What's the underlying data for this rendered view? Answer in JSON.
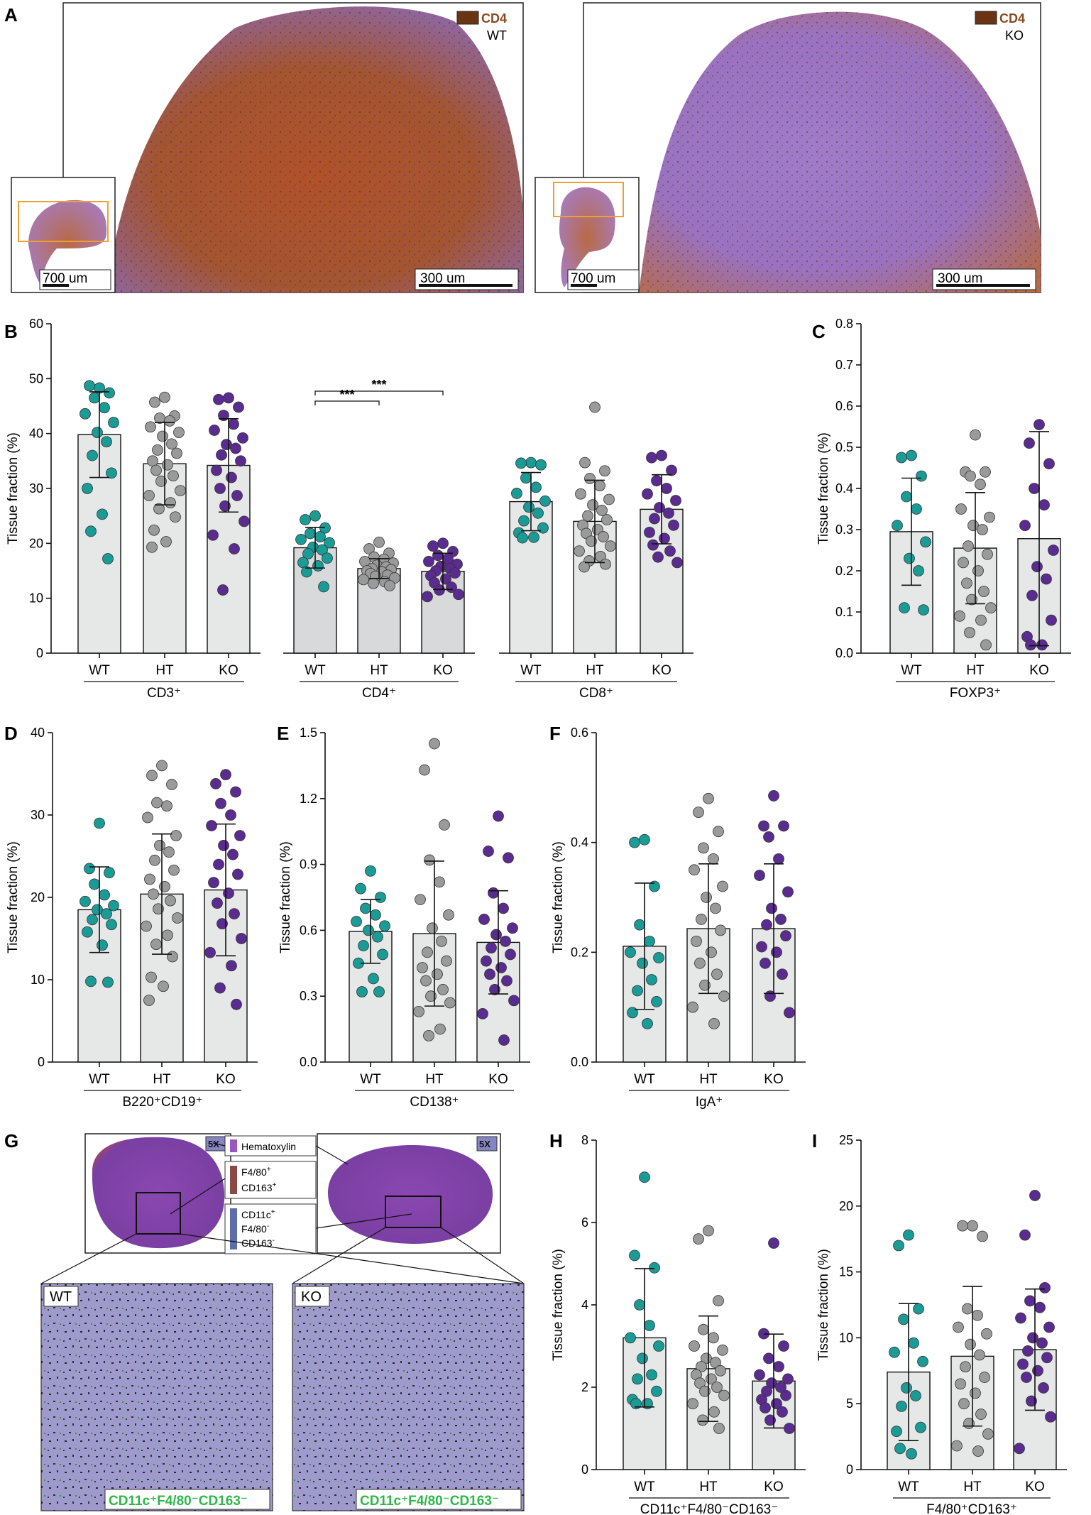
{
  "colors": {
    "wt": "#1a9b96",
    "ht": "#9a9a9a",
    "ko": "#5b2c8f",
    "bar_fill": "#e6e8e8",
    "bar_fill_dark": "#d7d9db",
    "stain_brown": "#6b3514",
    "hematoxylin": "#9a57c2",
    "f480": "#8a4a45",
    "cd11c": "#5b6ea8",
    "green_label": "#2db84a"
  },
  "panel_letters": [
    "A",
    "B",
    "C",
    "D",
    "E",
    "F",
    "G",
    "H",
    "I"
  ],
  "panel_a": {
    "left": {
      "stain_label": "CD4",
      "genotype": "WT",
      "inset_scale": "700 um",
      "main_scale": "300 um"
    },
    "right": {
      "stain_label": "CD4",
      "genotype": "KO",
      "inset_scale": "700 um",
      "main_scale": "300 um"
    }
  },
  "panel_g": {
    "magnification": "5X",
    "legend": [
      {
        "label_lines": [
          "Hematoxylin"
        ]
      },
      {
        "label_lines": [
          "F4/80",
          "CD163"
        ],
        "sups": [
          "+",
          "+"
        ]
      },
      {
        "label_lines": [
          "CD11c",
          "F4/80",
          "CD163"
        ],
        "sups": [
          "+",
          "-",
          "-"
        ]
      }
    ],
    "zoom_left_label": "WT",
    "zoom_right_label": "KO",
    "cell_label": "CD11c⁺F4/80⁻CD163⁻"
  },
  "chart_data": [
    {
      "id": "B",
      "type": "bar",
      "ylabel": "Tissue fraction (%)",
      "ylim": [
        0,
        60
      ],
      "yticks": [
        0,
        10,
        20,
        30,
        40,
        50,
        60
      ],
      "groups": [
        {
          "label": "CD3⁺",
          "categories": [
            "WT",
            "HT",
            "KO"
          ],
          "means": [
            39.8,
            34.5,
            34.2
          ],
          "sd": [
            7.8,
            7.5,
            8.5
          ],
          "points": [
            [
              48.3,
              48.7,
              47.4,
              46.5,
              44.7,
              43.6,
              42.0,
              40.2,
              38.5,
              36.0,
              32.8,
              30.0,
              25.3,
              22.2,
              17.2
            ],
            [
              46.6,
              45.7,
              43.2,
              42.8,
              42.3,
              41.2,
              40.2,
              39.5,
              38.1,
              37.0,
              36.4,
              35.0,
              34.3,
              33.3,
              32.3,
              31.3,
              29.6,
              28.7,
              27.4,
              26.3,
              24.8,
              22.4,
              20.3,
              19.3
            ],
            [
              46.5,
              46.2,
              44.8,
              43.3,
              41.7,
              40.6,
              39.2,
              38.0,
              37.3,
              36.1,
              35.0,
              33.3,
              32.0,
              30.0,
              28.7,
              26.8,
              24.0,
              21.5,
              19.0,
              11.5
            ]
          ]
        },
        {
          "label": "CD4⁺",
          "categories": [
            "WT",
            "HT",
            "KO"
          ],
          "means": [
            19.2,
            15.4,
            14.9
          ],
          "sd": [
            3.7,
            1.8,
            3.3
          ],
          "points": [
            [
              25.0,
              24.3,
              22.8,
              21.8,
              21.2,
              20.7,
              20.1,
              19.3,
              18.8,
              18.1,
              17.3,
              16.5,
              15.9,
              14.8,
              12.1
            ],
            [
              20.2,
              19.0,
              18.2,
              17.5,
              17.1,
              16.7,
              16.4,
              16.0,
              15.7,
              15.4,
              15.2,
              15.0,
              14.8,
              14.5,
              14.2,
              14.0,
              13.7,
              13.4,
              13.0,
              12.7,
              12.3
            ],
            [
              20.0,
              19.5,
              18.5,
              17.8,
              17.2,
              16.7,
              16.2,
              15.8,
              15.4,
              15.0,
              14.6,
              14.1,
              13.5,
              12.8,
              12.0,
              11.5,
              10.7,
              10.3
            ]
          ]
        },
        {
          "label": "CD8⁺",
          "categories": [
            "WT",
            "HT",
            "KO"
          ],
          "means": [
            27.6,
            24.0,
            26.2
          ],
          "sd": [
            5.3,
            7.5,
            6.3
          ],
          "points": [
            [
              34.7,
              34.6,
              34.3,
              31.9,
              30.2,
              29.1,
              27.7,
              26.6,
              25.5,
              24.1,
              22.8,
              21.9,
              21.1,
              21.0
            ],
            [
              44.8,
              34.7,
              33.2,
              31.8,
              30.5,
              29.0,
              28.0,
              27.0,
              26.0,
              25.0,
              24.3,
              23.3,
              22.5,
              21.8,
              21.2,
              20.4,
              19.5,
              18.6,
              17.6,
              16.8,
              16.2,
              15.7
            ],
            [
              36.0,
              35.6,
              33.3,
              31.4,
              30.0,
              29.0,
              27.8,
              26.5,
              25.5,
              24.5,
              23.3,
              22.0,
              20.9,
              19.7,
              18.6,
              17.5,
              16.5
            ]
          ]
        }
      ],
      "significance": [
        {
          "group": 1,
          "from": 0,
          "to": 1,
          "text": "***"
        },
        {
          "group": 1,
          "from": 0,
          "to": 2,
          "text": "***"
        }
      ]
    },
    {
      "id": "C",
      "type": "bar",
      "ylabel": "Tissue fraction (%)",
      "ylim": [
        0,
        0.8
      ],
      "yticks": [
        "0.0",
        "0.1",
        "0.2",
        "0.3",
        "0.4",
        "0.5",
        "0.6",
        "0.7",
        "0.8"
      ],
      "groups": [
        {
          "label": "FOXP3⁺",
          "categories": [
            "WT",
            "HT",
            "KO"
          ],
          "means": [
            0.295,
            0.255,
            0.278
          ],
          "sd": [
            0.13,
            0.135,
            0.26
          ],
          "points": [
            [
              0.48,
              0.475,
              0.43,
              0.38,
              0.35,
              0.31,
              0.27,
              0.23,
              0.2,
              0.11,
              0.105
            ],
            [
              0.53,
              0.44,
              0.44,
              0.43,
              0.41,
              0.35,
              0.33,
              0.31,
              0.3,
              0.26,
              0.24,
              0.22,
              0.2,
              0.17,
              0.15,
              0.13,
              0.11,
              0.09,
              0.08,
              0.05,
              0.02
            ],
            [
              0.555,
              0.51,
              0.46,
              0.4,
              0.36,
              0.31,
              0.25,
              0.21,
              0.18,
              0.14,
              0.08,
              0.04,
              0.02,
              0.02
            ]
          ]
        }
      ]
    },
    {
      "id": "D",
      "type": "bar",
      "ylabel": "Tissue fraction (%)",
      "ylim": [
        0,
        40
      ],
      "yticks": [
        0,
        10,
        20,
        30,
        40
      ],
      "groups": [
        {
          "label": "B220⁺CD19⁺",
          "categories": [
            "WT",
            "HT",
            "KO"
          ],
          "means": [
            18.5,
            20.4,
            20.9
          ],
          "sd": [
            5.2,
            7.3,
            8.0
          ],
          "points": [
            [
              29.0,
              23.5,
              23.0,
              21.6,
              20.3,
              19.5,
              19.0,
              18.5,
              18.0,
              17.3,
              16.7,
              15.8,
              14.2,
              9.8,
              9.7
            ],
            [
              36.0,
              34.8,
              33.7,
              31.5,
              31.1,
              29.7,
              27.5,
              26.3,
              25.5,
              24.5,
              23.3,
              22.2,
              21.3,
              20.4,
              19.6,
              18.6,
              17.5,
              16.5,
              15.4,
              14.3,
              12.8,
              10.3,
              9.2,
              7.5
            ],
            [
              34.9,
              33.8,
              32.8,
              31.4,
              30.0,
              28.7,
              27.5,
              26.3,
              25.2,
              24.0,
              22.8,
              21.8,
              20.5,
              19.3,
              18.0,
              16.8,
              15.0,
              13.3,
              11.7,
              9.0,
              7.0
            ]
          ]
        }
      ]
    },
    {
      "id": "E",
      "type": "bar",
      "ylabel": "Tissue fraction (%)",
      "ylim": [
        0,
        1.5
      ],
      "yticks": [
        "0.0",
        "0.3",
        "0.6",
        "0.9",
        "1.2",
        "1.5"
      ],
      "groups": [
        {
          "label": "CD138⁺",
          "categories": [
            "WT",
            "HT",
            "KO"
          ],
          "means": [
            0.595,
            0.585,
            0.545
          ],
          "sd": [
            0.145,
            0.33,
            0.235
          ],
          "points": [
            [
              0.87,
              0.79,
              0.75,
              0.7,
              0.67,
              0.64,
              0.62,
              0.6,
              0.57,
              0.53,
              0.49,
              0.45,
              0.38,
              0.32,
              0.32
            ],
            [
              1.45,
              1.33,
              1.08,
              0.92,
              0.82,
              0.74,
              0.67,
              0.61,
              0.55,
              0.5,
              0.46,
              0.43,
              0.4,
              0.37,
              0.33,
              0.3,
              0.27,
              0.23,
              0.15,
              0.12
            ],
            [
              1.12,
              0.96,
              0.93,
              0.77,
              0.7,
              0.65,
              0.61,
              0.58,
              0.55,
              0.52,
              0.49,
              0.46,
              0.43,
              0.4,
              0.37,
              0.33,
              0.28,
              0.22,
              0.1
            ]
          ]
        }
      ]
    },
    {
      "id": "F",
      "type": "bar",
      "ylabel": "Tissue fraction (%)",
      "ylim": [
        0,
        0.6
      ],
      "yticks": [
        "0.0",
        "0.2",
        "0.4",
        "0.6"
      ],
      "groups": [
        {
          "label": "IgA⁺",
          "categories": [
            "WT",
            "HT",
            "KO"
          ],
          "means": [
            0.211,
            0.243,
            0.243
          ],
          "sd": [
            0.115,
            0.118,
            0.118
          ],
          "points": [
            [
              0.405,
              0.4,
              0.32,
              0.25,
              0.22,
              0.2,
              0.19,
              0.18,
              0.15,
              0.13,
              0.11,
              0.09,
              0.07
            ],
            [
              0.48,
              0.455,
              0.42,
              0.39,
              0.37,
              0.35,
              0.32,
              0.3,
              0.28,
              0.26,
              0.24,
              0.22,
              0.2,
              0.18,
              0.16,
              0.14,
              0.12,
              0.1,
              0.07
            ],
            [
              0.485,
              0.43,
              0.43,
              0.41,
              0.37,
              0.34,
              0.31,
              0.28,
              0.26,
              0.25,
              0.23,
              0.21,
              0.2,
              0.18,
              0.16,
              0.12,
              0.09
            ]
          ]
        }
      ]
    },
    {
      "id": "H",
      "type": "bar",
      "ylabel": "Tissue fraction (%)",
      "ylim": [
        0,
        8
      ],
      "yticks": [
        0,
        2,
        4,
        6,
        8
      ],
      "groups": [
        {
          "label": "CD11c⁺F4/80⁻CD163⁻",
          "categories": [
            "WT",
            "HT",
            "KO"
          ],
          "means": [
            3.2,
            2.45,
            2.15
          ],
          "sd": [
            1.68,
            1.28,
            1.14
          ],
          "points": [
            [
              7.1,
              5.2,
              4.9,
              4.0,
              3.5,
              3.2,
              3.0,
              2.7,
              2.3,
              2.2,
              1.9,
              1.7,
              1.6,
              1.6
            ],
            [
              5.8,
              5.6,
              4.1,
              3.4,
              3.2,
              3.0,
              2.9,
              2.7,
              2.6,
              2.5,
              2.4,
              2.3,
              2.2,
              2.1,
              2.0,
              1.9,
              1.8,
              1.6,
              1.4,
              1.2,
              1.0
            ],
            [
              5.5,
              3.3,
              3.0,
              2.7,
              2.5,
              2.3,
              2.2,
              2.1,
              2.0,
              1.9,
              1.8,
              1.7,
              1.6,
              1.5,
              1.4,
              1.2,
              1.0
            ]
          ]
        }
      ]
    },
    {
      "id": "I",
      "type": "bar",
      "ylabel": "Tissue fraction (%)",
      "ylim": [
        0,
        25
      ],
      "yticks": [
        0,
        5,
        10,
        15,
        20,
        25
      ],
      "groups": [
        {
          "label": "F4/80⁺CD163⁺",
          "categories": [
            "WT",
            "HT",
            "KO"
          ],
          "means": [
            7.4,
            8.6,
            9.1
          ],
          "sd": [
            5.2,
            5.3,
            4.6
          ],
          "points": [
            [
              17.8,
              17.0,
              12.2,
              11.4,
              9.6,
              8.9,
              8.2,
              6.2,
              5.6,
              4.8,
              3.2,
              2.9,
              1.2,
              1.6
            ],
            [
              18.5,
              18.5,
              17.7,
              12.2,
              11.7,
              10.8,
              10.3,
              9.5,
              8.7,
              7.8,
              7.0,
              6.5,
              5.8,
              5.0,
              4.2,
              3.5,
              2.7,
              1.8,
              1.4
            ],
            [
              20.8,
              17.8,
              13.8,
              12.8,
              12.3,
              11.5,
              10.8,
              10.0,
              9.6,
              9.0,
              8.5,
              8.0,
              7.5,
              7.0,
              6.2,
              5.2,
              4.0,
              1.6
            ]
          ]
        }
      ]
    }
  ]
}
